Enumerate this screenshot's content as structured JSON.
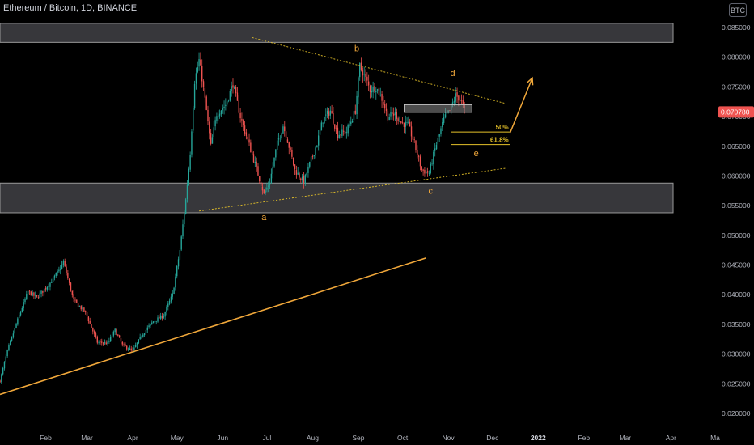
{
  "header": {
    "symbol_title": "Ethereum / Bitcoin, 1D, BINANCE",
    "currency_badge": "BTC"
  },
  "colors": {
    "up": "#26a69a",
    "down": "#ef5350",
    "orange": "#f0a73a",
    "yellow": "#e6c229",
    "zone": "#4a4a4f",
    "price_line": "#ef5350",
    "label_bg": "#ef5350"
  },
  "chart_data": {
    "type": "candlestick",
    "title": "Ethereum / Bitcoin, 1D, BINANCE",
    "x_axis": {
      "type": "date",
      "range": [
        "2021-01-01",
        "2022-05-01"
      ],
      "tick_labels": [
        {
          "label": "Feb",
          "date": "2021-02-01"
        },
        {
          "label": "Mar",
          "date": "2021-03-01"
        },
        {
          "label": "Apr",
          "date": "2021-04-01"
        },
        {
          "label": "May",
          "date": "2021-05-01"
        },
        {
          "label": "Jun",
          "date": "2021-06-01"
        },
        {
          "label": "Jul",
          "date": "2021-07-01"
        },
        {
          "label": "Aug",
          "date": "2021-08-01"
        },
        {
          "label": "Sep",
          "date": "2021-09-01"
        },
        {
          "label": "Oct",
          "date": "2021-10-01"
        },
        {
          "label": "Nov",
          "date": "2021-11-01"
        },
        {
          "label": "Dec",
          "date": "2021-12-01"
        },
        {
          "label": "2022",
          "date": "2022-01-01"
        },
        {
          "label": "Feb",
          "date": "2022-02-01"
        },
        {
          "label": "Mar",
          "date": "2022-03-01"
        },
        {
          "label": "Apr",
          "date": "2022-04-01"
        },
        {
          "label": "Ma",
          "date": "2022-05-01"
        }
      ]
    },
    "y_axis": {
      "range": [
        0.0175,
        0.0885
      ],
      "position": "right",
      "tick_labels": [
        "0.085000",
        "0.080000",
        "0.075000",
        "0.070000",
        "0.065000",
        "0.060000",
        "0.055000",
        "0.050000",
        "0.045000",
        "0.040000",
        "0.035000",
        "0.030000",
        "0.025000",
        "0.020000"
      ],
      "tick_values": [
        0.085,
        0.08,
        0.075,
        0.07,
        0.065,
        0.06,
        0.055,
        0.05,
        0.045,
        0.04,
        0.035,
        0.03,
        0.025,
        0.02
      ]
    },
    "current_price": {
      "value": 0.07078,
      "label": "0.070780"
    },
    "price_path": [
      [
        "2021-01-01",
        0.0255
      ],
      [
        "2021-01-06",
        0.0305
      ],
      [
        "2021-01-14",
        0.0365
      ],
      [
        "2021-01-20",
        0.0405
      ],
      [
        "2021-01-26",
        0.0395
      ],
      [
        "2021-02-04",
        0.042
      ],
      [
        "2021-02-10",
        0.044
      ],
      [
        "2021-02-13",
        0.0455
      ],
      [
        "2021-02-20",
        0.039
      ],
      [
        "2021-02-28",
        0.037
      ],
      [
        "2021-03-08",
        0.032
      ],
      [
        "2021-03-15",
        0.0318
      ],
      [
        "2021-03-20",
        0.034
      ],
      [
        "2021-03-25",
        0.0315
      ],
      [
        "2021-04-01",
        0.0305
      ],
      [
        "2021-04-08",
        0.0335
      ],
      [
        "2021-04-15",
        0.0355
      ],
      [
        "2021-04-22",
        0.0365
      ],
      [
        "2021-04-28",
        0.04
      ],
      [
        "2021-05-03",
        0.0475
      ],
      [
        "2021-05-07",
        0.056
      ],
      [
        "2021-05-10",
        0.064
      ],
      [
        "2021-05-13",
        0.076
      ],
      [
        "2021-05-16",
        0.0795
      ],
      [
        "2021-05-18",
        0.0765
      ],
      [
        "2021-05-21",
        0.071
      ],
      [
        "2021-05-24",
        0.065
      ],
      [
        "2021-05-28",
        0.0705
      ],
      [
        "2021-06-03",
        0.072
      ],
      [
        "2021-06-08",
        0.0755
      ],
      [
        "2021-06-13",
        0.07
      ],
      [
        "2021-06-18",
        0.066
      ],
      [
        "2021-06-23",
        0.062
      ],
      [
        "2021-06-29",
        0.057
      ],
      [
        "2021-07-03",
        0.059
      ],
      [
        "2021-07-08",
        0.0655
      ],
      [
        "2021-07-12",
        0.0685
      ],
      [
        "2021-07-15",
        0.066
      ],
      [
        "2021-07-20",
        0.061
      ],
      [
        "2021-07-26",
        0.059
      ],
      [
        "2021-07-30",
        0.062
      ],
      [
        "2021-08-04",
        0.0655
      ],
      [
        "2021-08-08",
        0.0695
      ],
      [
        "2021-08-13",
        0.071
      ],
      [
        "2021-08-18",
        0.067
      ],
      [
        "2021-08-24",
        0.0675
      ],
      [
        "2021-08-30",
        0.071
      ],
      [
        "2021-09-02",
        0.0785
      ],
      [
        "2021-09-05",
        0.077
      ],
      [
        "2021-09-09",
        0.0745
      ],
      [
        "2021-09-13",
        0.075
      ],
      [
        "2021-09-17",
        0.073
      ],
      [
        "2021-09-21",
        0.07
      ],
      [
        "2021-09-26",
        0.0705
      ],
      [
        "2021-09-30",
        0.069
      ],
      [
        "2021-10-05",
        0.0685
      ],
      [
        "2021-10-09",
        0.0655
      ],
      [
        "2021-10-14",
        0.061
      ],
      [
        "2021-10-19",
        0.0605
      ],
      [
        "2021-10-23",
        0.0645
      ],
      [
        "2021-10-26",
        0.067
      ],
      [
        "2021-10-29",
        0.0695
      ],
      [
        "2021-11-02",
        0.071
      ],
      [
        "2021-11-06",
        0.0735
      ],
      [
        "2021-11-09",
        0.073
      ],
      [
        "2021-11-12",
        0.071
      ]
    ],
    "annotations": {
      "resistance_zone": {
        "y_range": [
          0.0825,
          0.0857
        ]
      },
      "support_zone": {
        "y_range": [
          0.0538,
          0.0588
        ]
      },
      "current_zone": {
        "x_range": [
          "2021-10-02",
          "2021-11-17"
        ],
        "y_range": [
          0.0707,
          0.072
        ]
      },
      "upper_trendline": {
        "from": [
          "2021-06-21",
          0.0833
        ],
        "to": [
          "2021-12-10",
          0.0722
        ]
      },
      "lower_trendline": {
        "from": [
          "2021-05-16",
          0.0541
        ],
        "to": [
          "2021-12-10",
          0.0613
        ]
      },
      "long_trendline": {
        "from": [
          "2021-01-01",
          0.0232
        ],
        "to": [
          "2021-10-17",
          0.0462
        ]
      },
      "fib_50": {
        "label": "50%",
        "value": 0.0674,
        "x_range": [
          "2021-11-03",
          "2021-12-13"
        ]
      },
      "fib_618": {
        "label": "61.8%",
        "value": 0.0653,
        "x_range": [
          "2021-11-03",
          "2021-12-13"
        ]
      },
      "wave_labels": [
        {
          "text": "a",
          "date": "2021-06-29",
          "value": 0.0526
        },
        {
          "text": "b",
          "date": "2021-08-31",
          "value": 0.081
        },
        {
          "text": "c",
          "date": "2021-10-20",
          "value": 0.057
        },
        {
          "text": "d",
          "date": "2021-11-04",
          "value": 0.0768
        },
        {
          "text": "e",
          "date": "2021-11-20",
          "value": 0.0633
        }
      ],
      "projection_arrow": {
        "from": [
          "2021-12-13",
          0.0673
        ],
        "to": [
          "2021-12-28",
          0.0765
        ]
      }
    }
  }
}
